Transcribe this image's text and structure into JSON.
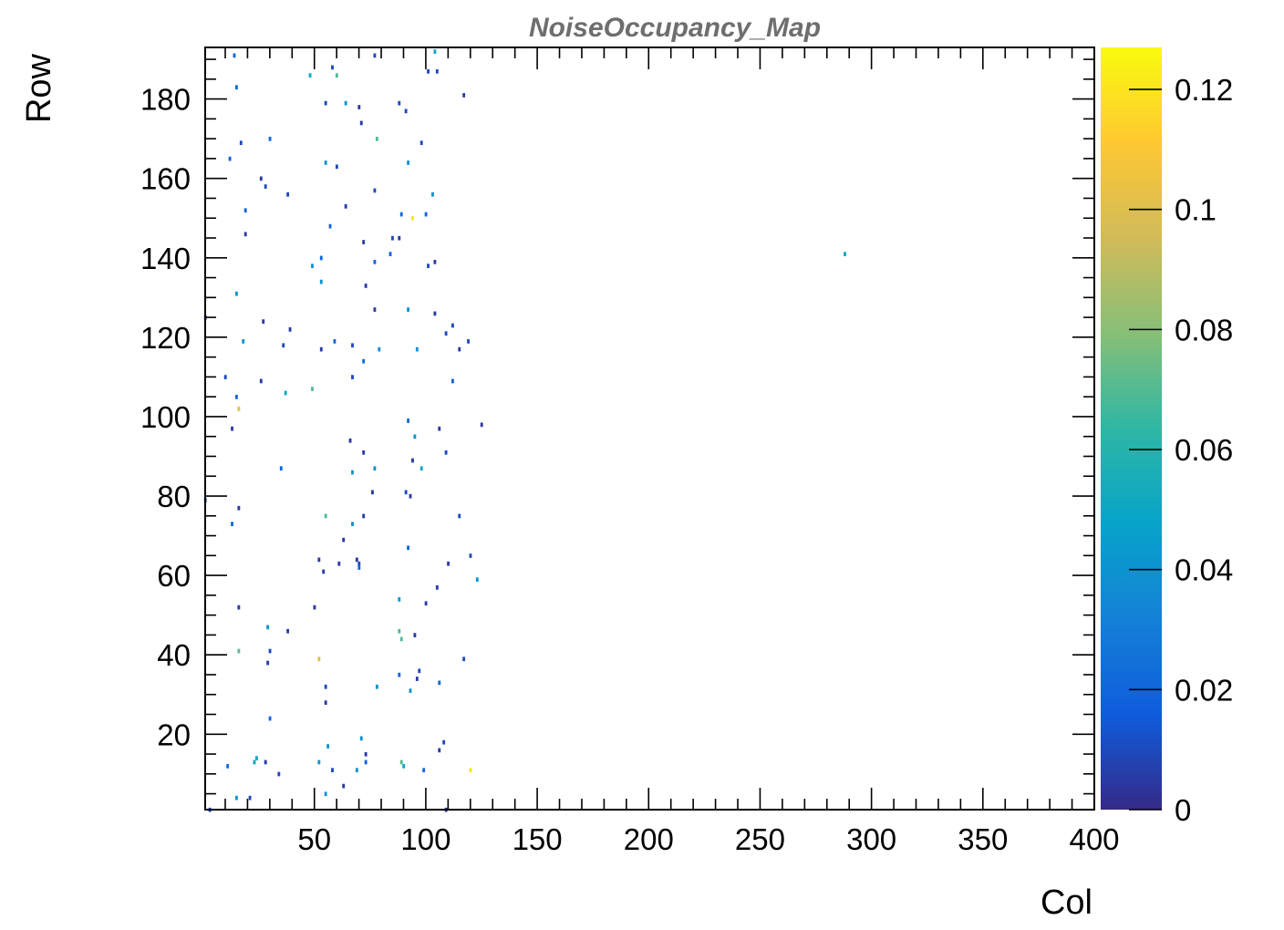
{
  "chart_data": {
    "type": "heatmap",
    "title": "NoiseOccupancy_Map",
    "xlabel": "Col",
    "ylabel": "Row",
    "xlim": [
      1,
      400
    ],
    "ylim": [
      1,
      193
    ],
    "x_ticks": [
      "50",
      "100",
      "150",
      "200",
      "250",
      "300",
      "350",
      "400"
    ],
    "y_ticks": [
      "20",
      "40",
      "60",
      "80",
      "100",
      "120",
      "140",
      "160",
      "180"
    ],
    "colorbar": {
      "range": [
        0,
        0.127
      ],
      "ticks": [
        "0",
        "0.02",
        "0.04",
        "0.06",
        "0.08",
        "0.1",
        "0.12"
      ],
      "palette": [
        "#352a87",
        "#0f5cdd",
        "#1481d6",
        "#06a4ca",
        "#2eb7a4",
        "#87bf77",
        "#d1bb59",
        "#fec832",
        "#f9fb0e"
      ]
    },
    "cells": [
      [
        14,
        191,
        0.02
      ],
      [
        104,
        192,
        0.05
      ],
      [
        58,
        188,
        0.01
      ],
      [
        48,
        186,
        0.05
      ],
      [
        60,
        186,
        0.07
      ],
      [
        77,
        191,
        0.01
      ],
      [
        101,
        187,
        0.01
      ],
      [
        105,
        187,
        0.01
      ],
      [
        15,
        183,
        0.02
      ],
      [
        117,
        181,
        0.005
      ],
      [
        55,
        179,
        0.01
      ],
      [
        64,
        179,
        0.04
      ],
      [
        70,
        178,
        0.005
      ],
      [
        88,
        179,
        0.01
      ],
      [
        91,
        177,
        0.01
      ],
      [
        71,
        174,
        0.005
      ],
      [
        30,
        170,
        0.02
      ],
      [
        78,
        170,
        0.07
      ],
      [
        17,
        169,
        0.01
      ],
      [
        98,
        169,
        0.01
      ],
      [
        55,
        164,
        0.04
      ],
      [
        92,
        164,
        0.04
      ],
      [
        60,
        163,
        0.01
      ],
      [
        12,
        165,
        0.02
      ],
      [
        26,
        160,
        0.005
      ],
      [
        28,
        158,
        0.01
      ],
      [
        38,
        156,
        0.01
      ],
      [
        77,
        157,
        0.01
      ],
      [
        103,
        156,
        0.04
      ],
      [
        64,
        153,
        0.005
      ],
      [
        19,
        152,
        0.02
      ],
      [
        89,
        151,
        0.02
      ],
      [
        94,
        150,
        0.12
      ],
      [
        100,
        151,
        0.02
      ],
      [
        57,
        148,
        0.02
      ],
      [
        19,
        146,
        0.005
      ],
      [
        72,
        144,
        0.005
      ],
      [
        85,
        145,
        0.01
      ],
      [
        88,
        145,
        0.005
      ],
      [
        84,
        141,
        0.02
      ],
      [
        53,
        140,
        0.02
      ],
      [
        77,
        139,
        0.02
      ],
      [
        49,
        138,
        0.04
      ],
      [
        101,
        138,
        0.01
      ],
      [
        104,
        139,
        0.005
      ],
      [
        288,
        141,
        0.05
      ],
      [
        53,
        134,
        0.04
      ],
      [
        73,
        133,
        0.005
      ],
      [
        15,
        131,
        0.04
      ],
      [
        77,
        127,
        0.005
      ],
      [
        92,
        127,
        0.04
      ],
      [
        104,
        126,
        0.005
      ],
      [
        1,
        125,
        0.005
      ],
      [
        27,
        124,
        0.005
      ],
      [
        112,
        123,
        0.01
      ],
      [
        39,
        122,
        0.005
      ],
      [
        109,
        121,
        0.01
      ],
      [
        18,
        119,
        0.04
      ],
      [
        36,
        118,
        0.01
      ],
      [
        53,
        117,
        0.005
      ],
      [
        59,
        119,
        0.02
      ],
      [
        67,
        118,
        0.01
      ],
      [
        79,
        117,
        0.04
      ],
      [
        96,
        117,
        0.04
      ],
      [
        119,
        119,
        0.01
      ],
      [
        115,
        117,
        0.005
      ],
      [
        72,
        114,
        0.02
      ],
      [
        10,
        110,
        0.01
      ],
      [
        26,
        109,
        0.005
      ],
      [
        67,
        110,
        0.01
      ],
      [
        112,
        109,
        0.02
      ],
      [
        37,
        106,
        0.05
      ],
      [
        49,
        107,
        0.07
      ],
      [
        15,
        105,
        0.02
      ],
      [
        16,
        102,
        0.1
      ],
      [
        13,
        97,
        0.005
      ],
      [
        92,
        99,
        0.02
      ],
      [
        106,
        97,
        0.005
      ],
      [
        125,
        98,
        0.005
      ],
      [
        66,
        94,
        0.005
      ],
      [
        95,
        95,
        0.04
      ],
      [
        72,
        91,
        0.005
      ],
      [
        109,
        91,
        0.01
      ],
      [
        94,
        89,
        0.005
      ],
      [
        67,
        86,
        0.04
      ],
      [
        77,
        87,
        0.04
      ],
      [
        98,
        87,
        0.05
      ],
      [
        35,
        87,
        0.02
      ],
      [
        76,
        81,
        0.005
      ],
      [
        91,
        81,
        0.01
      ],
      [
        93,
        80,
        0.005
      ],
      [
        1,
        79,
        0.01
      ],
      [
        16,
        77,
        0.005
      ],
      [
        55,
        75,
        0.07
      ],
      [
        72,
        75,
        0.005
      ],
      [
        115,
        75,
        0.01
      ],
      [
        13,
        73,
        0.02
      ],
      [
        67,
        73,
        0.04
      ],
      [
        63,
        69,
        0.005
      ],
      [
        92,
        67,
        0.02
      ],
      [
        52,
        64,
        0.005
      ],
      [
        69,
        64,
        0.005
      ],
      [
        70,
        63,
        0.01
      ],
      [
        61,
        63,
        0.005
      ],
      [
        110,
        63,
        0.005
      ],
      [
        120,
        65,
        0.01
      ],
      [
        70,
        62,
        0.02
      ],
      [
        54,
        61,
        0.005
      ],
      [
        123,
        59,
        0.04
      ],
      [
        105,
        57,
        0.005
      ],
      [
        88,
        54,
        0.04
      ],
      [
        16,
        52,
        0.005
      ],
      [
        50,
        52,
        0.005
      ],
      [
        100,
        53,
        0.005
      ],
      [
        29,
        47,
        0.04
      ],
      [
        38,
        46,
        0.005
      ],
      [
        88,
        46,
        0.07
      ],
      [
        95,
        45,
        0.005
      ],
      [
        89,
        44,
        0.07
      ],
      [
        16,
        41,
        0.07
      ],
      [
        30,
        41,
        0.01
      ],
      [
        52,
        39,
        0.1
      ],
      [
        29,
        38,
        0.005
      ],
      [
        117,
        39,
        0.01
      ],
      [
        88,
        35,
        0.02
      ],
      [
        97,
        36,
        0.01
      ],
      [
        96,
        34,
        0.005
      ],
      [
        106,
        33,
        0.02
      ],
      [
        55,
        32,
        0.01
      ],
      [
        78,
        32,
        0.04
      ],
      [
        93,
        31,
        0.04
      ],
      [
        55,
        28,
        0.005
      ],
      [
        30,
        24,
        0.02
      ],
      [
        71,
        19,
        0.04
      ],
      [
        56,
        17,
        0.04
      ],
      [
        108,
        18,
        0.01
      ],
      [
        106,
        16,
        0.005
      ],
      [
        73,
        15,
        0.005
      ],
      [
        24,
        14,
        0.05
      ],
      [
        23,
        13,
        0.05
      ],
      [
        28,
        13,
        0.005
      ],
      [
        52,
        13,
        0.04
      ],
      [
        73,
        13,
        0.02
      ],
      [
        89,
        13,
        0.07
      ],
      [
        90,
        12,
        0.05
      ],
      [
        11,
        12,
        0.02
      ],
      [
        58,
        11,
        0.01
      ],
      [
        69,
        11,
        0.04
      ],
      [
        99,
        11,
        0.02
      ],
      [
        120,
        11,
        0.12
      ],
      [
        34,
        10,
        0.01
      ],
      [
        63,
        7,
        0.005
      ],
      [
        55,
        5,
        0.04
      ],
      [
        15,
        4,
        0.04
      ],
      [
        21,
        4,
        0.01
      ],
      [
        3,
        1,
        0.01
      ],
      [
        109,
        1,
        0.005
      ]
    ]
  }
}
